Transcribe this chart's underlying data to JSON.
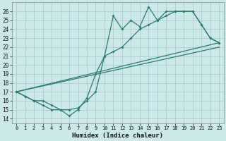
{
  "title": "",
  "xlabel": "Humidex (Indice chaleur)",
  "bg_color": "#cce8e8",
  "line_color": "#2d7a6e",
  "grid_color": "#aad0d0",
  "xlim": [
    -0.5,
    23.5
  ],
  "ylim": [
    13.5,
    27
  ],
  "yticks": [
    14,
    15,
    16,
    17,
    18,
    19,
    20,
    21,
    22,
    23,
    24,
    25,
    26
  ],
  "xticks": [
    0,
    1,
    2,
    3,
    4,
    5,
    6,
    7,
    8,
    9,
    10,
    11,
    12,
    13,
    14,
    15,
    16,
    17,
    18,
    19,
    20,
    21,
    22,
    23
  ],
  "jagged_x": [
    0,
    1,
    2,
    3,
    4,
    5,
    6,
    7,
    8,
    9,
    10,
    11,
    12,
    13,
    14,
    15,
    16,
    17,
    18,
    19,
    20,
    21,
    22,
    23
  ],
  "jagged_y": [
    17,
    16.5,
    16,
    15.5,
    15,
    15,
    14.3,
    15,
    16.3,
    19,
    21,
    25.5,
    24,
    25,
    24.3,
    26.5,
    25,
    26,
    26,
    26,
    26,
    24.5,
    23,
    22.5
  ],
  "smooth_x": [
    0,
    1,
    2,
    3,
    4,
    5,
    6,
    7,
    8,
    9,
    10,
    11,
    12,
    13,
    14,
    15,
    16,
    17,
    18,
    19,
    20,
    21,
    22,
    23
  ],
  "smooth_y": [
    17,
    16.5,
    16,
    16,
    15.5,
    15,
    15,
    15.2,
    16,
    17,
    21,
    21.5,
    22,
    23,
    24,
    24.5,
    25,
    25.5,
    26,
    26,
    26,
    24.5,
    23,
    22.5
  ],
  "line3_x": [
    0,
    23
  ],
  "line3_y": [
    17,
    22.5
  ],
  "line4_x": [
    0,
    23
  ],
  "line4_y": [
    17,
    22.0
  ]
}
